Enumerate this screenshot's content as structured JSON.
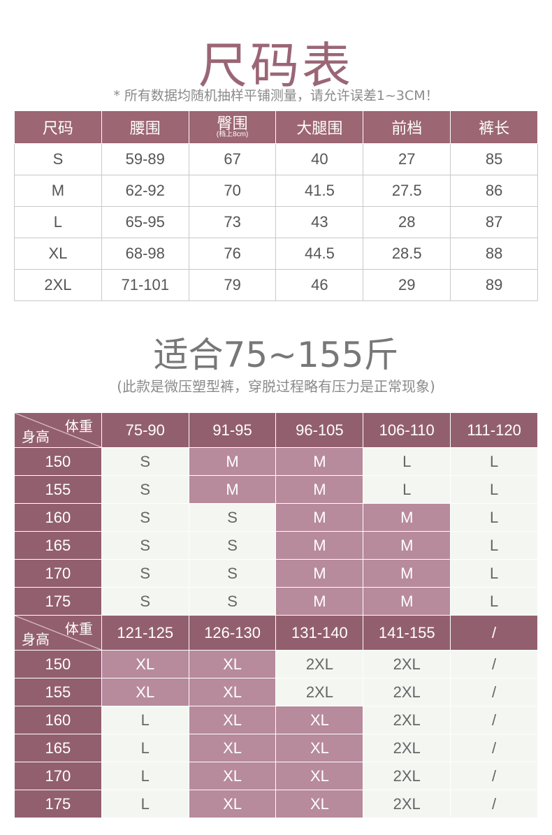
{
  "title": "尺码表",
  "subtitle": "* 所有数据均随机抽样平铺测量，请允许误差1~3CM！",
  "size_table": {
    "headers": [
      "尺码",
      "腰围",
      "臀围",
      "大腿围",
      "前档",
      "裤长"
    ],
    "hip_note": "(档上8cm)",
    "rows": [
      [
        "S",
        "59-89",
        "67",
        "40",
        "27",
        "85"
      ],
      [
        "M",
        "62-92",
        "70",
        "41.5",
        "27.5",
        "86"
      ],
      [
        "L",
        "65-95",
        "73",
        "43",
        "28",
        "87"
      ],
      [
        "XL",
        "68-98",
        "76",
        "44.5",
        "28.5",
        "88"
      ],
      [
        "2XL",
        "71-101",
        "79",
        "46",
        "29",
        "89"
      ]
    ]
  },
  "title2": "适合75~155斤",
  "subtitle2": "(此款是微压塑型裤，穿脱过程略有压力是正常现象)",
  "corner": {
    "weight": "体重",
    "height": "身高"
  },
  "colors": {
    "header": "#9c6673",
    "row_header": "#925f6e",
    "highlight": "#b78a9c",
    "cell": "#f4f6f2"
  },
  "fit_tables": [
    {
      "weights": [
        "75-90",
        "91-95",
        "96-105",
        "106-110",
        "111-120"
      ],
      "rows": [
        {
          "height": "150",
          "sizes": [
            "S",
            "M",
            "M",
            "L",
            "L"
          ],
          "hl": [
            0,
            1,
            1,
            0,
            0
          ]
        },
        {
          "height": "155",
          "sizes": [
            "S",
            "M",
            "M",
            "L",
            "L"
          ],
          "hl": [
            0,
            1,
            1,
            0,
            0
          ]
        },
        {
          "height": "160",
          "sizes": [
            "S",
            "S",
            "M",
            "M",
            "L"
          ],
          "hl": [
            0,
            0,
            1,
            1,
            0
          ]
        },
        {
          "height": "165",
          "sizes": [
            "S",
            "S",
            "M",
            "M",
            "L"
          ],
          "hl": [
            0,
            0,
            1,
            1,
            0
          ]
        },
        {
          "height": "170",
          "sizes": [
            "S",
            "S",
            "M",
            "M",
            "L"
          ],
          "hl": [
            0,
            0,
            1,
            1,
            0
          ]
        },
        {
          "height": "175",
          "sizes": [
            "S",
            "S",
            "M",
            "M",
            "L"
          ],
          "hl": [
            0,
            0,
            1,
            1,
            0
          ]
        }
      ]
    },
    {
      "weights": [
        "121-125",
        "126-130",
        "131-140",
        "141-155",
        "/"
      ],
      "rows": [
        {
          "height": "150",
          "sizes": [
            "XL",
            "XL",
            "2XL",
            "2XL",
            "/"
          ],
          "hl": [
            1,
            1,
            0,
            0,
            0
          ]
        },
        {
          "height": "155",
          "sizes": [
            "XL",
            "XL",
            "2XL",
            "2XL",
            "/"
          ],
          "hl": [
            1,
            1,
            0,
            0,
            0
          ]
        },
        {
          "height": "160",
          "sizes": [
            "L",
            "XL",
            "XL",
            "2XL",
            "/"
          ],
          "hl": [
            0,
            1,
            1,
            0,
            0
          ]
        },
        {
          "height": "165",
          "sizes": [
            "L",
            "XL",
            "XL",
            "2XL",
            "/"
          ],
          "hl": [
            0,
            1,
            1,
            0,
            0
          ]
        },
        {
          "height": "170",
          "sizes": [
            "L",
            "XL",
            "XL",
            "2XL",
            "/"
          ],
          "hl": [
            0,
            1,
            1,
            0,
            0
          ]
        },
        {
          "height": "175",
          "sizes": [
            "L",
            "XL",
            "XL",
            "2XL",
            "/"
          ],
          "hl": [
            0,
            1,
            1,
            0,
            0
          ]
        }
      ]
    }
  ]
}
